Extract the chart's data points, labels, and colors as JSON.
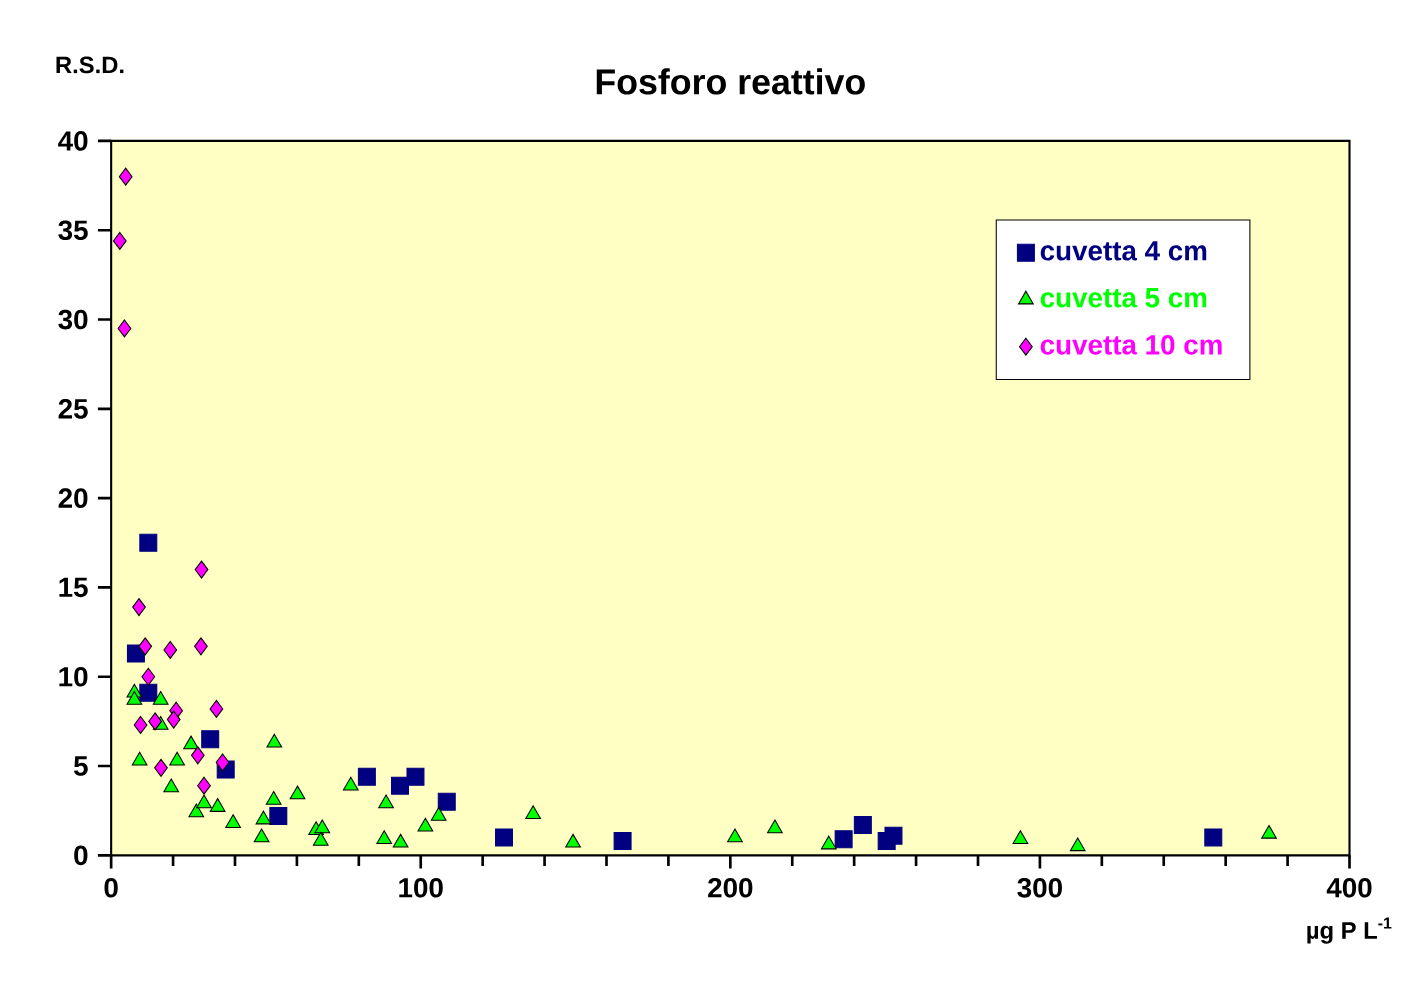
{
  "chart_data": {
    "type": "scatter",
    "title": "Fosforo reattivo",
    "xlabel": "µg P L$^{-1}$",
    "ylabel": "R.S.D.",
    "xlim": [
      0,
      400
    ],
    "xticks": [
      0,
      100,
      200,
      300,
      400
    ],
    "ylim": [
      0,
      40
    ],
    "yticks": [
      0,
      5,
      10,
      15,
      20,
      25,
      30,
      35,
      40
    ],
    "grid": false,
    "legend": "top right",
    "series": [
      {
        "name": "cuvetta   4 cm",
        "color": "#000080",
        "marker": "square",
        "x": [
          12,
          8,
          12,
          32,
          37,
          54,
          82.6,
          93.3,
          98.3,
          108.4,
          126.9,
          165.2,
          236.6,
          242.8,
          250.5,
          252.7,
          356
        ],
        "values": [
          17.5,
          11.3,
          9.1,
          6.5,
          4.8,
          2.2,
          4.4,
          3.9,
          4.4,
          3.0,
          1.0,
          0.8,
          0.9,
          1.7,
          0.8,
          1.1,
          1.0
        ]
      },
      {
        "name": "cuvetta   5 cm",
        "color": "#00ff00",
        "marker": "triangle",
        "x": [
          7.5,
          7.5,
          16,
          16,
          9.2,
          21.3,
          19.4,
          25.8,
          52.7,
          27.5,
          30,
          34.4,
          39.4,
          48.6,
          49.2,
          52.5,
          60.2,
          66.2,
          68.2,
          67.7,
          77.4,
          88.8,
          88.2,
          93.5,
          101.5,
          105.8,
          136.3,
          149.2,
          201.5,
          214.4,
          231.8,
          293.7,
          312.2,
          374
        ],
        "values": [
          9.1,
          8.7,
          8.7,
          7.3,
          5.3,
          5.3,
          3.8,
          6.2,
          6.3,
          2.4,
          2.9,
          2.7,
          1.8,
          1.0,
          2.0,
          3.1,
          3.4,
          1.4,
          1.5,
          0.8,
          3.9,
          2.9,
          0.9,
          0.7,
          1.6,
          2.2,
          2.3,
          0.7,
          1.0,
          1.5,
          0.6,
          0.9,
          0.5,
          1.2
        ]
      },
      {
        "name": "cuvetta 10 cm",
        "color": "#ff00ff",
        "marker": "diamond",
        "x": [
          4.7,
          2.8,
          4.3,
          29.2,
          9,
          11,
          19.1,
          29,
          12,
          21,
          34,
          20.2,
          9.5,
          14.2,
          28,
          36,
          16.1,
          30
        ],
        "values": [
          38.0,
          34.4,
          29.5,
          16.0,
          13.9,
          11.7,
          11.5,
          11.7,
          10.0,
          8.1,
          8.2,
          7.6,
          7.3,
          7.5,
          5.6,
          5.2,
          4.9,
          3.9
        ]
      }
    ]
  }
}
